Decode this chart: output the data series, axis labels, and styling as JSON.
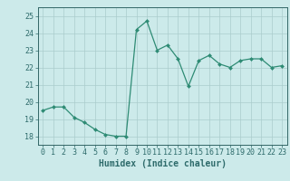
{
  "x": [
    0,
    1,
    2,
    3,
    4,
    5,
    6,
    7,
    8,
    9,
    10,
    11,
    12,
    13,
    14,
    15,
    16,
    17,
    18,
    19,
    20,
    21,
    22,
    23
  ],
  "y": [
    19.5,
    19.7,
    19.7,
    19.1,
    18.8,
    18.4,
    18.1,
    18.0,
    18.0,
    24.2,
    24.7,
    23.0,
    23.3,
    22.5,
    20.9,
    22.4,
    22.7,
    22.2,
    22.0,
    22.4,
    22.5,
    22.5,
    22.0,
    22.1
  ],
  "line_color": "#2e8b74",
  "marker": "D",
  "marker_size": 2.0,
  "bg_color": "#cceaea",
  "grid_color": "#aacccc",
  "xlabel": "Humidex (Indice chaleur)",
  "xlim": [
    -0.5,
    23.5
  ],
  "ylim": [
    17.5,
    25.5
  ],
  "yticks": [
    18,
    19,
    20,
    21,
    22,
    23,
    24,
    25
  ],
  "xticks": [
    0,
    1,
    2,
    3,
    4,
    5,
    6,
    7,
    8,
    9,
    10,
    11,
    12,
    13,
    14,
    15,
    16,
    17,
    18,
    19,
    20,
    21,
    22,
    23
  ],
  "xlabel_fontsize": 7.0,
  "tick_fontsize": 6.0,
  "axis_color": "#336666",
  "tick_color": "#2e6b6b"
}
